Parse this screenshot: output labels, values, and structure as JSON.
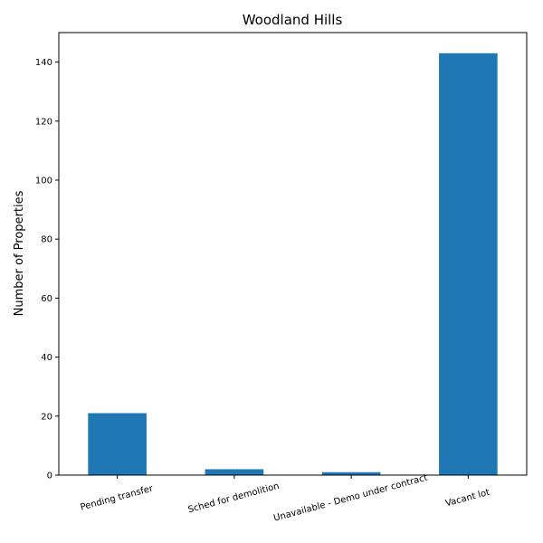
{
  "chart_data": {
    "type": "bar",
    "title": "Woodland Hills",
    "xlabel": "",
    "ylabel": "Number of Properties",
    "categories": [
      "Pending transfer",
      "Sched for demolition",
      "Unavailable - Demo under contract",
      "Vacant lot"
    ],
    "values": [
      21,
      2,
      1,
      143
    ],
    "ylim": [
      0,
      150
    ],
    "yticks": [
      0,
      20,
      40,
      60,
      80,
      100,
      120,
      140
    ],
    "bar_color": "#1f77b4",
    "grid": false,
    "legend": "none"
  }
}
